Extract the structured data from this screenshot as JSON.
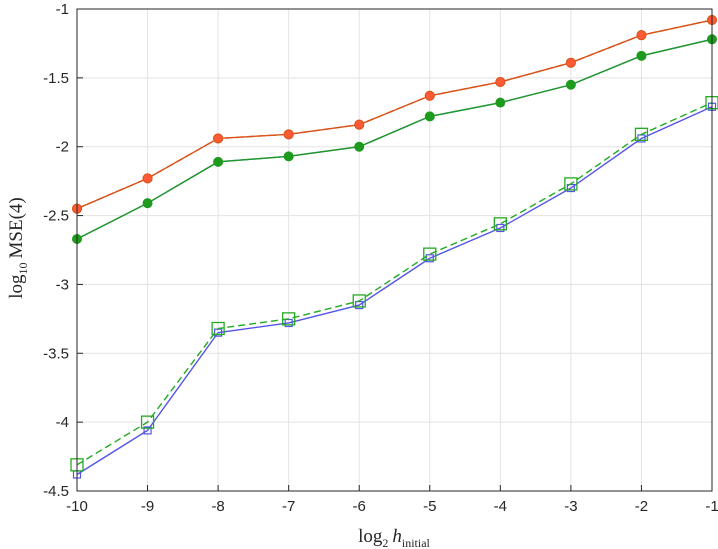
{
  "chart_data": {
    "type": "line",
    "xlabel": {
      "main": "log",
      "sub1": "2",
      "var": "h",
      "sub2": "initial"
    },
    "ylabel": {
      "main": "log",
      "sub1": "10",
      "rest": "MSE(4)"
    },
    "xlim": [
      -10,
      -1
    ],
    "ylim": [
      -4.5,
      -1
    ],
    "x": [
      -10,
      -9,
      -8,
      -7,
      -6,
      -5,
      -4,
      -3,
      -2,
      -1
    ],
    "xticks": [
      "-10",
      "-9",
      "-8",
      "-7",
      "-6",
      "-5",
      "-4",
      "-3",
      "-2",
      "-1"
    ],
    "yticks": [
      -4.5,
      -4,
      -3.5,
      -3,
      -2.5,
      -2,
      -1.5,
      -1
    ],
    "ytick_labels": [
      "-4.5",
      "-4",
      "-3.5",
      "-3",
      "-2.5",
      "-2",
      "-1.5",
      "-1"
    ],
    "grid": true,
    "series": [
      {
        "values": [
          -2.45,
          -2.23,
          -1.94,
          -1.91,
          -1.84,
          -1.63,
          -1.53,
          -1.39,
          -1.19,
          -1.08
        ],
        "color": "#d95319",
        "dash": false,
        "marker": "circle",
        "marker_color": "#edb120"
      },
      {
        "values": [
          -2.45,
          -2.23,
          -1.94,
          -1.91,
          -1.84,
          -1.63,
          -1.53,
          -1.39,
          -1.19,
          -1.08
        ],
        "color": "#d95319",
        "dash": true,
        "marker": "circle",
        "marker_color": "#ff5a36"
      },
      {
        "values": [
          -2.67,
          -2.41,
          -2.11,
          -2.07,
          -2.0,
          -1.78,
          -1.68,
          -1.55,
          -1.34,
          -1.22
        ],
        "color": "#4d6bff",
        "dash": false,
        "marker": "star",
        "marker_color": "#4d6bff"
      },
      {
        "values": [
          -2.67,
          -2.41,
          -2.11,
          -2.07,
          -2.0,
          -1.78,
          -1.68,
          -1.55,
          -1.34,
          -1.22
        ],
        "color": "#1e9b1e",
        "dash": false,
        "marker": "circle",
        "marker_color": "#1e9b1e"
      },
      {
        "values": [
          -4.38,
          -4.06,
          -3.35,
          -3.28,
          -3.15,
          -2.81,
          -2.59,
          -2.3,
          -1.94,
          -1.71
        ],
        "color": "#5555e6",
        "dash": false,
        "marker": "square-small",
        "marker_color": "#5555e6"
      },
      {
        "values": [
          -4.31,
          -4.0,
          -3.32,
          -3.25,
          -3.12,
          -2.78,
          -2.56,
          -2.27,
          -1.91,
          -1.68
        ],
        "color": "#22aa22",
        "dash": true,
        "marker": "square",
        "marker_color": "#22aa22"
      }
    ]
  }
}
